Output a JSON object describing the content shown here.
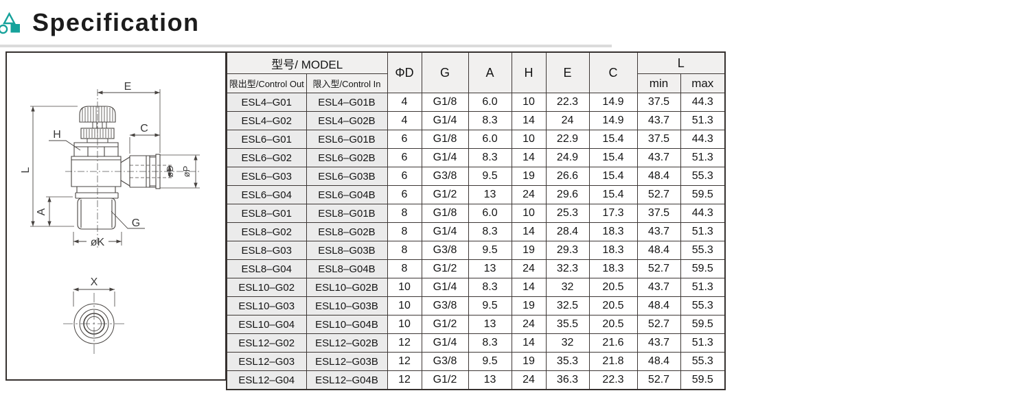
{
  "header": {
    "title": "Specification",
    "accent_color": "#16a29b"
  },
  "diagram": {
    "dim_labels": {
      "e": "E",
      "c": "C",
      "h": "H",
      "l": "L",
      "a": "A",
      "g": "G",
      "k": "øK",
      "d": "øD",
      "p": "øP",
      "x": "X"
    }
  },
  "table": {
    "model_header": "型号/ MODEL",
    "control_out_header": "限出型/Control Out",
    "control_in_header": "限入型/Control In",
    "phi_d_header": "ΦD",
    "g_header": "G",
    "a_header": "A",
    "h_header": "H",
    "e_header": "E",
    "c_header": "C",
    "l_header": "L",
    "l_min_header": "min",
    "l_max_header": "max",
    "rows": [
      [
        "ESL4–G01",
        "ESL4–G01B",
        "4",
        "G1/8",
        "6.0",
        "10",
        "22.3",
        "14.9",
        "37.5",
        "44.3"
      ],
      [
        "ESL4–G02",
        "ESL4–G02B",
        "4",
        "G1/4",
        "8.3",
        "14",
        "24",
        "14.9",
        "43.7",
        "51.3"
      ],
      [
        "ESL6–G01",
        "ESL6–G01B",
        "6",
        "G1/8",
        "6.0",
        "10",
        "22.9",
        "15.4",
        "37.5",
        "44.3"
      ],
      [
        "ESL6–G02",
        "ESL6–G02B",
        "6",
        "G1/4",
        "8.3",
        "14",
        "24.9",
        "15.4",
        "43.7",
        "51.3"
      ],
      [
        "ESL6–G03",
        "ESL6–G03B",
        "6",
        "G3/8",
        "9.5",
        "19",
        "26.6",
        "15.4",
        "48.4",
        "55.3"
      ],
      [
        "ESL6–G04",
        "ESL6–G04B",
        "6",
        "G1/2",
        "13",
        "24",
        "29.6",
        "15.4",
        "52.7",
        "59.5"
      ],
      [
        "ESL8–G01",
        "ESL8–G01B",
        "8",
        "G1/8",
        "6.0",
        "10",
        "25.3",
        "17.3",
        "37.5",
        "44.3"
      ],
      [
        "ESL8–G02",
        "ESL8–G02B",
        "8",
        "G1/4",
        "8.3",
        "14",
        "28.4",
        "18.3",
        "43.7",
        "51.3"
      ],
      [
        "ESL8–G03",
        "ESL8–G03B",
        "8",
        "G3/8",
        "9.5",
        "19",
        "29.3",
        "18.3",
        "48.4",
        "55.3"
      ],
      [
        "ESL8–G04",
        "ESL8–G04B",
        "8",
        "G1/2",
        "13",
        "24",
        "32.3",
        "18.3",
        "52.7",
        "59.5"
      ],
      [
        "ESL10–G02",
        "ESL10–G02B",
        "10",
        "G1/4",
        "8.3",
        "14",
        "32",
        "20.5",
        "43.7",
        "51.3"
      ],
      [
        "ESL10–G03",
        "ESL10–G03B",
        "10",
        "G3/8",
        "9.5",
        "19",
        "32.5",
        "20.5",
        "48.4",
        "55.3"
      ],
      [
        "ESL10–G04",
        "ESL10–G04B",
        "10",
        "G1/2",
        "13",
        "24",
        "35.5",
        "20.5",
        "52.7",
        "59.5"
      ],
      [
        "ESL12–G02",
        "ESL12–G02B",
        "12",
        "G1/4",
        "8.3",
        "14",
        "32",
        "21.6",
        "43.7",
        "51.3"
      ],
      [
        "ESL12–G03",
        "ESL12–G03B",
        "12",
        "G3/8",
        "9.5",
        "19",
        "35.3",
        "21.8",
        "48.4",
        "55.3"
      ],
      [
        "ESL12–G04",
        "ESL12–G04B",
        "12",
        "G1/2",
        "13",
        "24",
        "36.3",
        "22.3",
        "52.7",
        "59.5"
      ]
    ]
  }
}
